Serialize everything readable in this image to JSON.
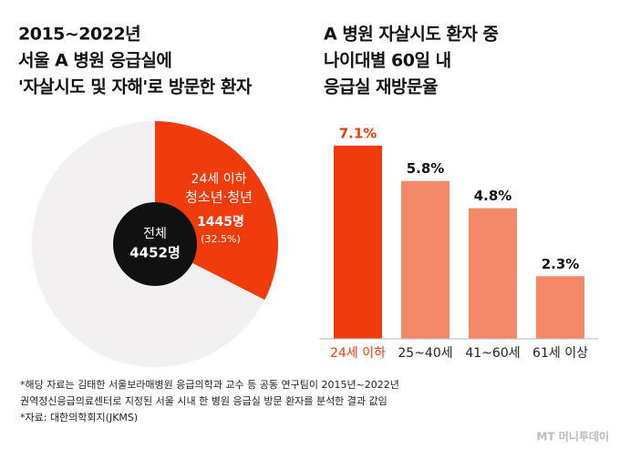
{
  "chart_data": [
    {
      "type": "pie",
      "title": [
        "2015~2022년",
        "서울 A 병원 응급실에",
        "'자살시도 및 자해'로 방문한 환자"
      ],
      "categories": [
        "24세 이하",
        null
      ],
      "values": [
        32.5,
        67.5
      ],
      "value_labels": [
        "(32.5%)",
        null
      ],
      "colors": [
        "#f03c0c",
        "#f2f0f0"
      ],
      "slice_subtitle": "청소년·청년",
      "slice_count": "1445명",
      "center_label": "전체",
      "center_value": "4452명"
    },
    {
      "type": "bar",
      "title": [
        "A 병원 자살시도 환자 중",
        "나이대별 60일 내",
        "응급실 재방문율"
      ],
      "categories": [
        "24세 이하",
        "25~40세",
        "41~60세",
        "61세 이상"
      ],
      "values": [
        7.1,
        5.8,
        4.8,
        2.3
      ],
      "value_labels": [
        "7.1%",
        "5.8%",
        "4.8%",
        "2.3%"
      ],
      "colors": [
        "#f03c0c",
        "#f4896a",
        "#f4896a",
        "#f4896a"
      ],
      "label_colors": [
        "#f03c0c",
        "#222222",
        "#222222",
        "#222222"
      ],
      "ylim": [
        0,
        8
      ]
    }
  ],
  "footnotes": [
    "*해당 자료는 김태한 서울보라매병원 응급의학과 교수 등 공동 연구팀이 2015년~2022년",
    "권역정신응급의료센터로 지정된 서울 시내 한 병원 응급실 방문 환자를 분석한 결과 값임",
    "*자료: 대한의학회지(JKMS)"
  ],
  "logo": "MT 머니투데이"
}
